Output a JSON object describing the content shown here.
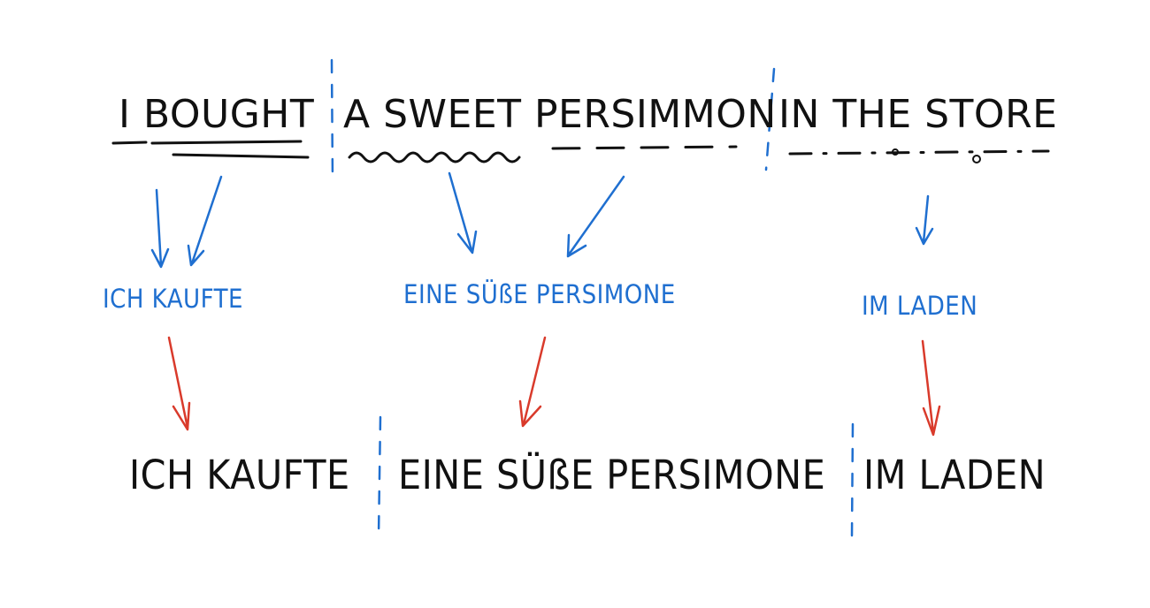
{
  "colors": {
    "ink": "#111111",
    "blue": "#1f6fd0",
    "red": "#d93a2b"
  },
  "source": {
    "chunk_1": "I BOUGHT",
    "chunk_2": "A SWEET PERSIMMON",
    "chunk_3": "IN THE STORE"
  },
  "intermediate": {
    "chunk_1": "ICH KAUFTE",
    "chunk_2": "EINE SÜßE PERSIMONE",
    "chunk_3": "IM LADEN"
  },
  "output": {
    "chunk_1": "ICH KAUFTE",
    "chunk_2": "EINE SÜßE PERSIMONE",
    "chunk_3": "IM LADEN"
  }
}
